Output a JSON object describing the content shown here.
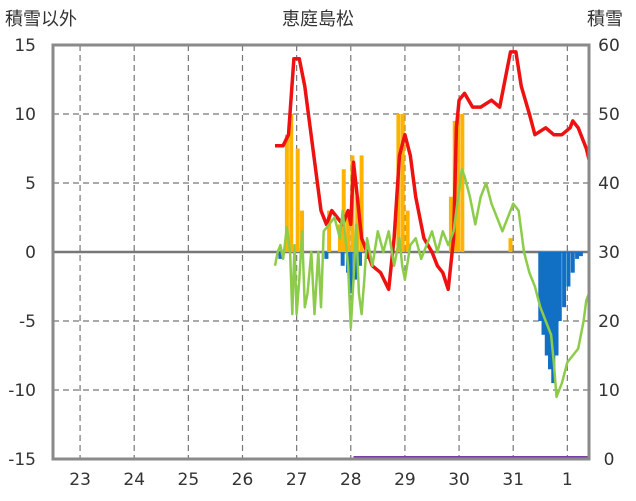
{
  "chart_data": {
    "type": "line",
    "title": "恵庭島松",
    "ylabel_left": "積雪以外",
    "ylabel_right": "積雪",
    "x_ticks": [
      "23",
      "24",
      "25",
      "26",
      "27",
      "28",
      "29",
      "30",
      "31",
      "1"
    ],
    "x_range": [
      22.5,
      32.4
    ],
    "ylim_left": [
      -15,
      15
    ],
    "y_ticks_left": [
      15,
      10,
      5,
      0,
      -5,
      -10,
      -15
    ],
    "ylim_right": [
      0,
      60
    ],
    "y_ticks_right": [
      60,
      50,
      40,
      30,
      20,
      10,
      0
    ],
    "grid": true,
    "series": [
      {
        "key": "temp",
        "axis": "left",
        "color": "#ee1111",
        "width": 3.5,
        "points": [
          [
            26.6,
            7.7
          ],
          [
            26.75,
            7.7
          ],
          [
            26.85,
            8.5
          ],
          [
            26.95,
            14
          ],
          [
            27.05,
            14
          ],
          [
            27.15,
            12
          ],
          [
            27.25,
            9
          ],
          [
            27.35,
            6
          ],
          [
            27.45,
            3
          ],
          [
            27.55,
            2
          ],
          [
            27.65,
            3
          ],
          [
            27.75,
            2.5
          ],
          [
            27.85,
            2
          ],
          [
            27.95,
            3
          ],
          [
            28.0,
            2
          ],
          [
            28.05,
            6.5
          ],
          [
            28.12,
            4
          ],
          [
            28.2,
            1
          ],
          [
            28.3,
            0
          ],
          [
            28.4,
            -1
          ],
          [
            28.55,
            -1.5
          ],
          [
            28.7,
            -2.7
          ],
          [
            28.8,
            1
          ],
          [
            28.9,
            7
          ],
          [
            29.0,
            8.5
          ],
          [
            29.1,
            7
          ],
          [
            29.2,
            4
          ],
          [
            29.35,
            1
          ],
          [
            29.5,
            0
          ],
          [
            29.6,
            -1
          ],
          [
            29.7,
            -1.5
          ],
          [
            29.8,
            -2.7
          ],
          [
            29.9,
            1
          ],
          [
            29.95,
            9
          ],
          [
            30.0,
            11
          ],
          [
            30.1,
            11.5
          ],
          [
            30.25,
            10.5
          ],
          [
            30.4,
            10.5
          ],
          [
            30.6,
            11
          ],
          [
            30.75,
            10.5
          ],
          [
            30.85,
            12.5
          ],
          [
            30.95,
            14.5
          ],
          [
            31.05,
            14.5
          ],
          [
            31.15,
            12
          ],
          [
            31.3,
            10
          ],
          [
            31.4,
            8.5
          ],
          [
            31.6,
            9
          ],
          [
            31.75,
            8.5
          ],
          [
            31.9,
            8.5
          ],
          [
            32.05,
            9
          ],
          [
            32.1,
            9.5
          ],
          [
            32.2,
            9
          ],
          [
            32.3,
            8
          ],
          [
            32.35,
            7.5
          ],
          [
            32.4,
            6.7
          ]
        ]
      },
      {
        "key": "wind",
        "axis": "left",
        "color": "#8ccc4a",
        "width": 2.5,
        "points": [
          [
            26.6,
            -1
          ],
          [
            26.65,
            0
          ],
          [
            26.7,
            0.5
          ],
          [
            26.75,
            -0.5
          ],
          [
            26.82,
            1.8
          ],
          [
            26.88,
            0
          ],
          [
            26.92,
            -4.5
          ],
          [
            26.96,
            0.5
          ],
          [
            27.0,
            -4.5
          ],
          [
            27.05,
            -2
          ],
          [
            27.1,
            1.5
          ],
          [
            27.15,
            -4
          ],
          [
            27.2,
            -3
          ],
          [
            27.27,
            0
          ],
          [
            27.33,
            -4.5
          ],
          [
            27.4,
            0
          ],
          [
            27.45,
            -4
          ],
          [
            27.5,
            1.5
          ],
          [
            27.6,
            2
          ],
          [
            27.7,
            2.5
          ],
          [
            27.8,
            1
          ],
          [
            27.85,
            3
          ],
          [
            27.95,
            -1
          ],
          [
            28.0,
            -5.5
          ],
          [
            28.05,
            -2
          ],
          [
            28.1,
            2
          ],
          [
            28.15,
            -3
          ],
          [
            28.2,
            -4.5
          ],
          [
            28.25,
            -2
          ],
          [
            28.3,
            1
          ],
          [
            28.4,
            -1
          ],
          [
            28.5,
            1.5
          ],
          [
            28.6,
            0
          ],
          [
            28.7,
            1.5
          ],
          [
            28.8,
            -1
          ],
          [
            28.9,
            1
          ],
          [
            28.95,
            -1
          ],
          [
            29.0,
            -2
          ],
          [
            29.1,
            0.5
          ],
          [
            29.2,
            1
          ],
          [
            29.3,
            -0.5
          ],
          [
            29.4,
            0.5
          ],
          [
            29.5,
            1.5
          ],
          [
            29.6,
            0
          ],
          [
            29.7,
            1.5
          ],
          [
            29.8,
            0.5
          ],
          [
            29.9,
            1.5
          ],
          [
            30.0,
            4.5
          ],
          [
            30.05,
            6
          ],
          [
            30.1,
            5.5
          ],
          [
            30.2,
            4
          ],
          [
            30.3,
            2
          ],
          [
            30.4,
            4
          ],
          [
            30.5,
            5
          ],
          [
            30.6,
            3.5
          ],
          [
            30.7,
            2.5
          ],
          [
            30.8,
            1.5
          ],
          [
            30.9,
            2.5
          ],
          [
            31.0,
            3.5
          ],
          [
            31.1,
            3
          ],
          [
            31.2,
            0
          ],
          [
            31.3,
            -1.5
          ],
          [
            31.4,
            -2.5
          ],
          [
            31.5,
            -4
          ],
          [
            31.6,
            -5
          ],
          [
            31.7,
            -6
          ],
          [
            31.75,
            -8
          ],
          [
            31.8,
            -10.5
          ],
          [
            31.9,
            -9.5
          ],
          [
            32.0,
            -8
          ],
          [
            32.1,
            -7.5
          ],
          [
            32.2,
            -7
          ],
          [
            32.3,
            -5
          ],
          [
            32.35,
            -3.5
          ],
          [
            32.4,
            -3
          ]
        ]
      }
    ],
    "bars": [
      {
        "key": "precip",
        "axis": "left",
        "color": "#ffb300",
        "points": [
          [
            26.82,
            8.5
          ],
          [
            26.9,
            10
          ],
          [
            27.02,
            7.5
          ],
          [
            27.1,
            3
          ],
          [
            27.6,
            3
          ],
          [
            27.8,
            2
          ],
          [
            27.87,
            6
          ],
          [
            27.95,
            2.5
          ],
          [
            28.03,
            7
          ],
          [
            28.12,
            4
          ],
          [
            28.2,
            7
          ],
          [
            28.88,
            10
          ],
          [
            28.96,
            10
          ],
          [
            29.05,
            3
          ],
          [
            29.85,
            4
          ],
          [
            29.92,
            9.5
          ],
          [
            29.98,
            10
          ],
          [
            30.06,
            10
          ],
          [
            30.95,
            1
          ]
        ]
      },
      {
        "key": "snow_change",
        "axis": "left",
        "color": "#1170c4",
        "points": [
          [
            26.7,
            -0.5
          ],
          [
            27.55,
            -0.5
          ],
          [
            27.85,
            -1
          ],
          [
            27.95,
            -1.5
          ],
          [
            28.0,
            -3
          ],
          [
            28.08,
            -2
          ],
          [
            28.17,
            -1
          ],
          [
            28.3,
            -0.5
          ],
          [
            31.5,
            -5
          ],
          [
            31.56,
            -6
          ],
          [
            31.62,
            -7.5
          ],
          [
            31.68,
            -8.5
          ],
          [
            31.74,
            -9.5
          ],
          [
            31.8,
            -7.5
          ],
          [
            31.86,
            -5
          ],
          [
            31.94,
            -4
          ],
          [
            32.02,
            -2.5
          ],
          [
            32.1,
            -1.5
          ],
          [
            32.18,
            -0.5
          ],
          [
            32.25,
            -0.3
          ]
        ]
      }
    ],
    "lines_right": [
      {
        "key": "snow_depth",
        "axis": "right",
        "color": "#7b3fa8",
        "width": 3,
        "points": [
          [
            28.05,
            0
          ],
          [
            32.4,
            0
          ]
        ]
      }
    ]
  }
}
